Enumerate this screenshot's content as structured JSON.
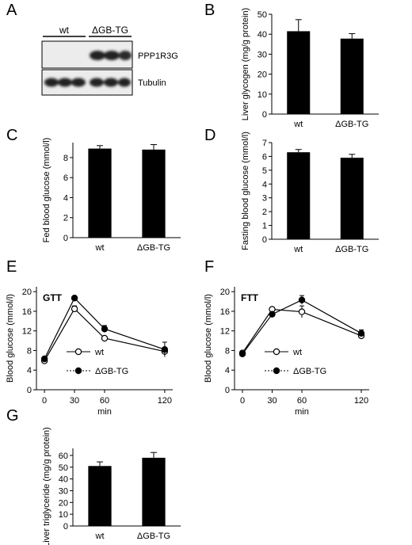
{
  "panels": {
    "a": "A",
    "b": "B",
    "c": "C",
    "d": "D",
    "e": "E",
    "f": "F",
    "g": "G"
  },
  "blot": {
    "group_labels": [
      "wt",
      "ΔGB-TG"
    ],
    "bands": [
      {
        "label": "PPP1R3G",
        "wt_intensity": "none",
        "tg_intensity": "strong"
      },
      {
        "label": "Tubulin",
        "wt_intensity": "strong",
        "tg_intensity": "strong"
      }
    ]
  },
  "chart_data": [
    {
      "panel": "B",
      "type": "bar",
      "categories": [
        "wt",
        "ΔGB-TG"
      ],
      "values": [
        41.5,
        37.8
      ],
      "errors": [
        5.8,
        2.5
      ],
      "ylabel": "Liver glycogen (mg/g protein)",
      "ylim": [
        0,
        50
      ],
      "yticks": [
        0,
        10,
        20,
        30,
        40,
        50
      ],
      "bar_color": "#000000"
    },
    {
      "panel": "C",
      "type": "bar",
      "categories": [
        "wt",
        "ΔGB-TG"
      ],
      "values": [
        8.9,
        8.8
      ],
      "errors": [
        0.3,
        0.5
      ],
      "ylabel": "Fed blood glucose (mmol/l)",
      "ylim": [
        0,
        9.5
      ],
      "yticks": [
        0,
        2,
        4,
        6,
        8
      ],
      "bar_color": "#000000"
    },
    {
      "panel": "D",
      "type": "bar",
      "categories": [
        "wt",
        "ΔGB-TG"
      ],
      "values": [
        6.3,
        5.9
      ],
      "errors": [
        0.2,
        0.25
      ],
      "ylabel": "Fasting blood glucose (mmol/l)",
      "ylim": [
        0,
        7
      ],
      "yticks": [
        0,
        1,
        2,
        3,
        4,
        5,
        6,
        7
      ],
      "bar_color": "#000000"
    },
    {
      "panel": "E",
      "type": "line",
      "title": "GTT",
      "x": [
        0,
        30,
        60,
        120
      ],
      "xlabel": "min",
      "ylabel": "Blood glucose (mmol/l)",
      "ylim": [
        0,
        21
      ],
      "yticks": [
        0,
        4,
        8,
        12,
        16,
        20
      ],
      "xlim": [
        -8,
        128
      ],
      "series": [
        {
          "name": "wt",
          "values": [
            5.9,
            16.5,
            10.5,
            7.8
          ],
          "errors": [
            0.3,
            0.6,
            0.4,
            0.7
          ],
          "marker": "open"
        },
        {
          "name": "ΔGB-TG",
          "values": [
            6.3,
            18.7,
            12.4,
            8.2
          ],
          "errors": [
            0.3,
            0.4,
            0.7,
            1.5
          ],
          "marker": "filled"
        }
      ],
      "legend": "lower-left"
    },
    {
      "panel": "F",
      "type": "line",
      "title": "FTT",
      "x": [
        0,
        30,
        60,
        120
      ],
      "xlabel": "min",
      "ylabel": "Blood glucose (mmol/l)",
      "ylim": [
        0,
        21
      ],
      "yticks": [
        0,
        4,
        8,
        12,
        16,
        20
      ],
      "xlim": [
        -8,
        128
      ],
      "series": [
        {
          "name": "wt",
          "values": [
            7.5,
            16.4,
            15.9,
            11.0
          ],
          "errors": [
            0.3,
            0.4,
            1.2,
            0.5
          ],
          "marker": "open"
        },
        {
          "name": "ΔGB-TG",
          "values": [
            7.3,
            15.4,
            18.3,
            11.5
          ],
          "errors": [
            0.3,
            0.5,
            0.9,
            0.7
          ],
          "marker": "filled"
        }
      ],
      "legend": "lower-left"
    },
    {
      "panel": "G",
      "type": "bar",
      "categories": [
        "wt",
        "ΔGB-TG"
      ],
      "values": [
        51,
        58
      ],
      "errors": [
        3.5,
        4.5
      ],
      "ylabel": "Liver triglyceride (mg/g protein)",
      "ylim": [
        0,
        66
      ],
      "yticks": [
        0,
        10,
        20,
        30,
        40,
        50,
        60
      ],
      "bar_color": "#000000"
    }
  ]
}
